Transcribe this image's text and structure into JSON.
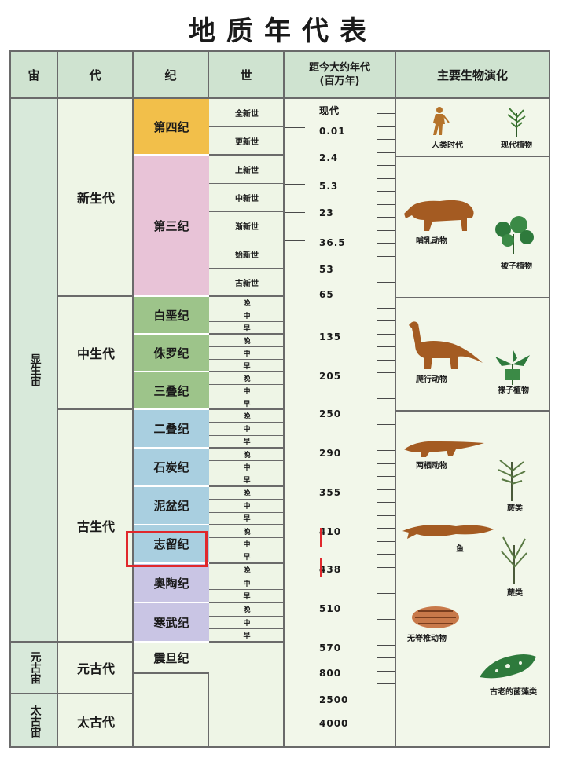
{
  "title": "地质年代表",
  "headers": {
    "eon": "宙",
    "era": "代",
    "period": "纪",
    "epoch": "世",
    "time_line1": "距今大约年代",
    "time_line2": "(百万年)",
    "life": "主要生物演化"
  },
  "eons": [
    "显生宙",
    "元古宙",
    "太古宙"
  ],
  "eras": [
    "新生代",
    "中生代",
    "古生代",
    "元古代",
    "太古代"
  ],
  "periods": [
    "第四纪",
    "第三纪",
    "白垩纪",
    "侏罗纪",
    "三叠纪",
    "二叠纪",
    "石炭纪",
    "泥盆纪",
    "志留纪",
    "奥陶纪",
    "寒武纪",
    "震旦纪"
  ],
  "cenozoic_epochs": [
    "全新世",
    "更新世",
    "上新世",
    "中新世",
    "渐新世",
    "始新世",
    "古新世"
  ],
  "sub_epochs": [
    "晚",
    "中",
    "早"
  ],
  "times": [
    "现代",
    "0.01",
    "2.4",
    "5.3",
    "23",
    "36.5",
    "53",
    "65",
    "135",
    "205",
    "250",
    "290",
    "355",
    "410",
    "438",
    "510",
    "570",
    "800",
    "2500",
    "4000"
  ],
  "life": [
    "人类时代",
    "现代植物",
    "哺乳动物",
    "被子植物",
    "爬行动物",
    "裸子植物",
    "两栖动物",
    "蕨类",
    "鱼",
    "蕨类",
    "无脊椎动物",
    "古老的菌藻类"
  ],
  "colors": {
    "quaternary": "#f2bf4a",
    "tertiary": "#e8c3d7",
    "mesozoic": "#9dc48a",
    "paleozoic_blue": "#a9cfe0",
    "paleozoic_violet": "#c9c5e4",
    "highlight": "#e0282c"
  }
}
